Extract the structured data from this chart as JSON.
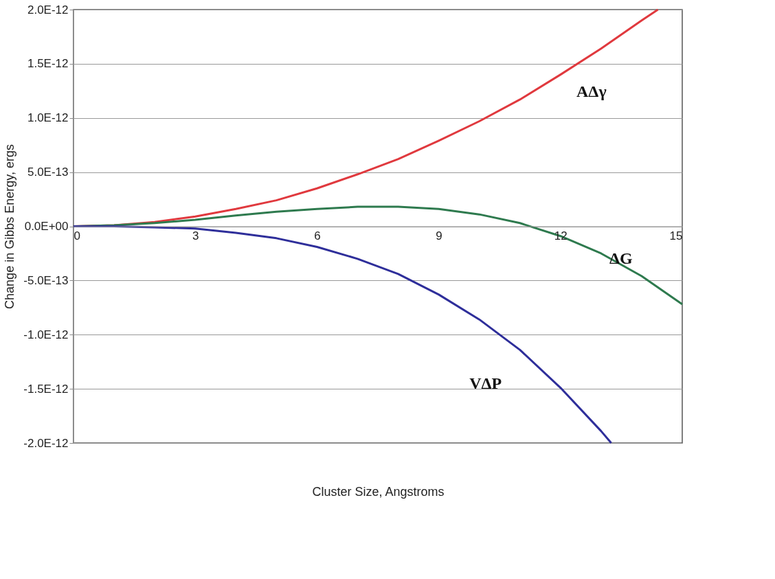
{
  "chart_data": {
    "type": "line",
    "xlabel": "Cluster Size, Angstroms",
    "ylabel": "Change in Gibbs Energy, ergs",
    "x": [
      0,
      1,
      2,
      3,
      4,
      5,
      6,
      7,
      8,
      9,
      10,
      11,
      12,
      13,
      14,
      15
    ],
    "series": [
      {
        "color": "#e0393e",
        "x": [
          0,
          1,
          2,
          3,
          4,
          5,
          6,
          7,
          8,
          9,
          10,
          11,
          12,
          13,
          14,
          14.4
        ],
        "values": [
          0,
          1e-14,
          4e-14,
          9e-14,
          1.6e-13,
          2.4e-13,
          3.5e-13,
          4.8e-13,
          6.2e-13,
          7.9e-13,
          9.7e-13,
          1.17e-12,
          1.4e-12,
          1.64e-12,
          1.9e-12,
          2e-12
        ]
      },
      {
        "color": "#2e7a4e",
        "values": [
          0,
          1e-14,
          3e-14,
          6e-14,
          1e-13,
          1.35e-13,
          1.6e-13,
          1.8e-13,
          1.8e-13,
          1.6e-13,
          1.1e-13,
          3e-14,
          -9e-14,
          -2.5e-13,
          -4.6e-13,
          -7.2e-13
        ]
      },
      {
        "color": "#2e2e9a",
        "x": [
          0,
          1,
          2,
          3,
          4,
          5,
          6,
          7,
          8,
          9,
          10,
          11,
          12,
          13,
          13.25
        ],
        "values": [
          0,
          0,
          -1e-14,
          -2e-14,
          -6e-14,
          -1.1e-13,
          -1.9e-13,
          -3e-13,
          -4.4e-13,
          -6.3e-13,
          -8.6e-13,
          -1.14e-12,
          -1.49e-12,
          -1.89e-12,
          -2e-12
        ]
      }
    ],
    "xlim": [
      0,
      15
    ],
    "xticks": [
      0,
      3,
      6,
      9,
      12,
      15
    ],
    "ylim": [
      -2e-12,
      2e-12
    ],
    "yticks": [
      {
        "value": -2e-12,
        "label": "-2.0E-12"
      },
      {
        "value": -1.5e-12,
        "label": "-1.5E-12"
      },
      {
        "value": -1e-12,
        "label": "-1.0E-12"
      },
      {
        "value": -5e-13,
        "label": "-5.0E-13"
      },
      {
        "value": 0,
        "label": "0.0E+00"
      },
      {
        "value": 5e-13,
        "label": "5.0E-13"
      },
      {
        "value": 1e-12,
        "label": "1.0E-12"
      },
      {
        "value": 1.5e-12,
        "label": "1.5E-12"
      },
      {
        "value": 2e-12,
        "label": "2.0E-12"
      }
    ],
    "annotations": [
      {
        "text": "AΔγ",
        "x": 12,
        "y": 1.4e-12
      },
      {
        "text": "ΔG",
        "x": 14,
        "y": -4.6e-13
      },
      {
        "text": "VΔP",
        "x": 11,
        "y": -1.14e-12
      }
    ],
    "grid": "y",
    "legend": false,
    "marker": "none",
    "line_style": "solid"
  }
}
